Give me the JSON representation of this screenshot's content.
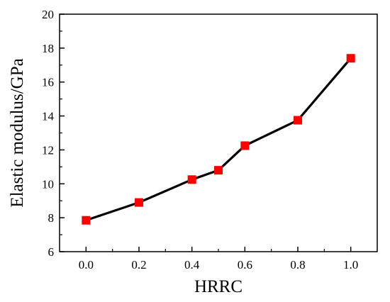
{
  "chart_data": {
    "type": "line",
    "xlabel": "HRRC",
    "ylabel": "Elastic modulus/GPa",
    "xlim": [
      -0.1,
      1.1
    ],
    "ylim": [
      6,
      20
    ],
    "xticks": [
      0.0,
      0.2,
      0.4,
      0.6,
      0.8,
      1.0
    ],
    "xtick_labels": [
      "0.0",
      "0.2",
      "0.4",
      "0.6",
      "0.8",
      "1.0"
    ],
    "yticks": [
      6,
      8,
      10,
      12,
      14,
      16,
      18,
      20
    ],
    "ytick_labels": [
      "6",
      "8",
      "10",
      "12",
      "14",
      "16",
      "18",
      "20"
    ],
    "grid": false,
    "series": [
      {
        "x": [
          0.0,
          0.2,
          0.4,
          0.5,
          0.6,
          0.8,
          1.0
        ],
        "y": [
          7.85,
          8.9,
          10.25,
          10.8,
          12.25,
          13.75,
          17.4
        ],
        "line_color": "#000000",
        "marker": "square",
        "marker_color": "#ff0000"
      }
    ]
  }
}
